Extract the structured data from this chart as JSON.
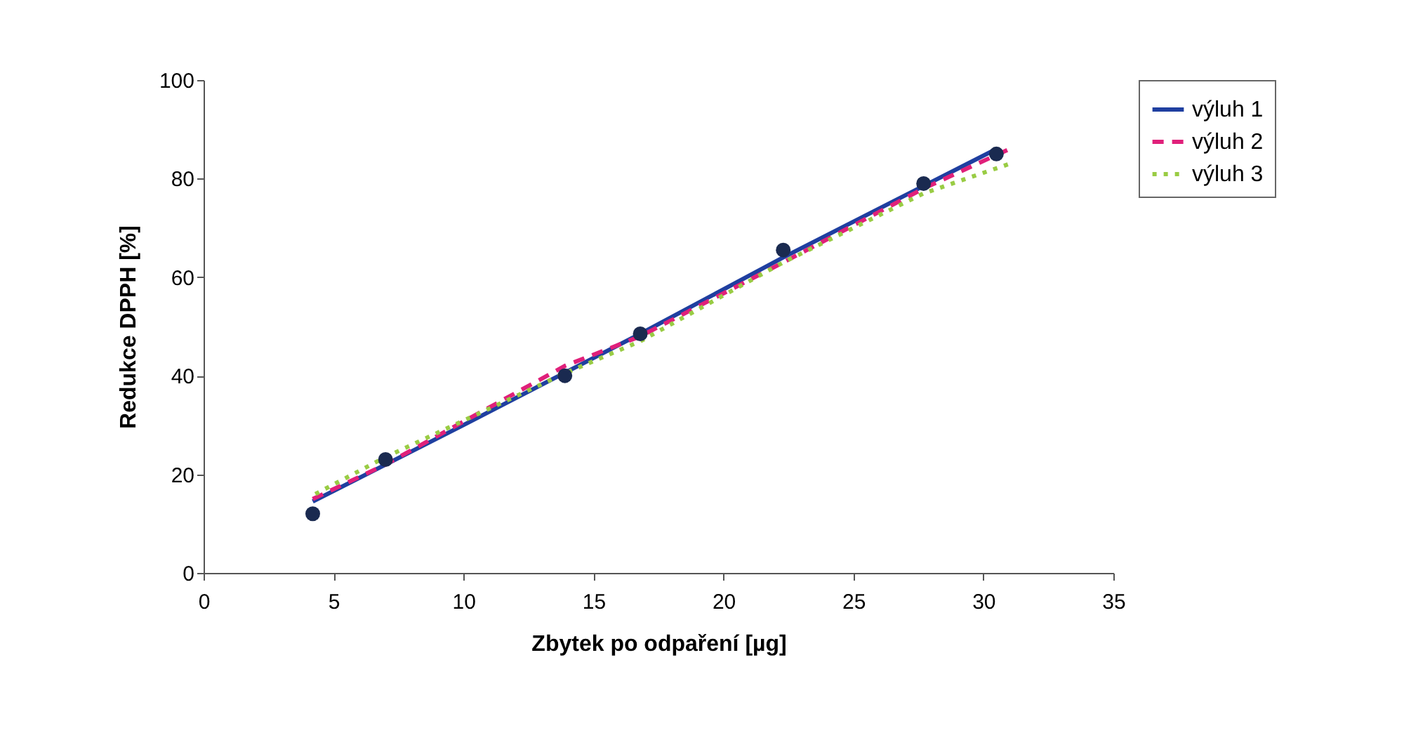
{
  "chart_data": {
    "type": "line",
    "xlabel": "Zbytek po odpaření [µg]",
    "ylabel": "Redukce DPPH [%]",
    "xlim": [
      0,
      35
    ],
    "xticks": [
      0,
      5,
      10,
      15,
      20,
      25,
      30,
      35
    ],
    "ylim": [
      0,
      100
    ],
    "yticks": [
      0,
      20,
      40,
      60,
      80,
      100
    ],
    "grid": false,
    "legend": "right",
    "marker": "none",
    "series": [
      {
        "name": "výluh 1",
        "color": "#1f3fa0",
        "line_style": "solid",
        "x": [
          4.2,
          10,
          16.8,
          22.3,
          27.7,
          30.5
        ],
        "values": [
          14.5,
          30,
          48.5,
          64,
          78.5,
          86
        ]
      },
      {
        "name": "výluh 2",
        "color": "#e0207a",
        "line_style": "dashed",
        "x": [
          4.2,
          7,
          13.9,
          16.8,
          22.3,
          27.7,
          31
        ],
        "values": [
          15,
          22,
          42,
          48,
          63,
          78,
          86
        ]
      },
      {
        "name": "výluh 3",
        "color": "#99cc44",
        "line_style": "dotted",
        "x": [
          4.3,
          7,
          13.9,
          16.8,
          22.3,
          27.7,
          31
        ],
        "values": [
          16,
          23.5,
          40.5,
          47,
          63,
          77,
          83
        ]
      },
      {
        "type": "scatter",
        "color": "#1a2a50",
        "marker": "circle",
        "x": [
          4.2,
          7,
          13.9,
          16.8,
          22.3,
          27.7,
          30.5
        ],
        "values": [
          12,
          23,
          40,
          48.5,
          65.5,
          79,
          85
        ]
      }
    ]
  }
}
